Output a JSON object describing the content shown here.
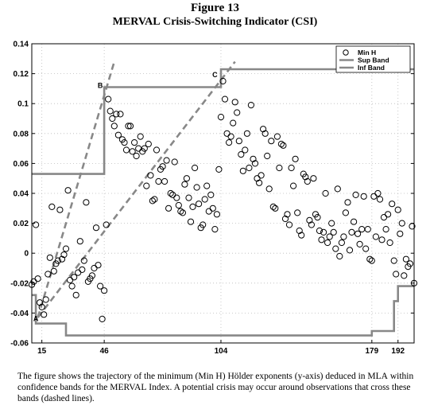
{
  "figure": {
    "title": "Figure 13",
    "subtitle_sc": "MERVAL",
    "subtitle_main": " Crisis-Switching Indicator (",
    "subtitle_abbr": "CSI",
    "subtitle_end": ")",
    "caption_part1": "The figure shows the trajectory of the minimum (Min H) Hölder exponents (y-axis) deduced in ",
    "caption_sc1": "MLA",
    "caption_part2": " within confidence bands for the ",
    "caption_sc2": "MERVAL",
    "caption_part3": " Index. A potential crisis may occur around observations that cross these bands (dashed lines)."
  },
  "chart_data": {
    "type": "scatter",
    "title": "",
    "xlabel": "",
    "ylabel": "",
    "xlim": [
      10,
      200
    ],
    "ylim": [
      -0.06,
      0.14
    ],
    "yticks": [
      -0.06,
      -0.04,
      -0.02,
      0,
      0.02,
      0.04,
      0.06,
      0.08,
      0.1,
      0.12,
      0.14
    ],
    "ytick_labels": [
      "-0.06",
      "-0.04",
      "-0.02",
      "0",
      "0.02",
      "0.04",
      "0.06",
      "0.08",
      "0.1",
      "0.12",
      "0.14"
    ],
    "xticks": [
      15,
      46,
      104,
      179,
      192
    ],
    "xtick_labels": [
      "15",
      "46",
      "104",
      "179",
      "192"
    ],
    "grid": true,
    "legend": {
      "placement": "top-right",
      "entries": [
        {
          "label": "Min H",
          "marker": "circle"
        },
        {
          "label": "Sup Band",
          "marker": "line"
        },
        {
          "label": "Inf Band",
          "marker": "line"
        }
      ]
    },
    "colors": {
      "points": "#000000",
      "bands": "#888888",
      "dashed": "#888888"
    },
    "series": [
      {
        "name": "Min H",
        "points": [
          [
            10,
            -0.021
          ],
          [
            11,
            -0.019
          ],
          [
            12,
            0.019
          ],
          [
            13,
            -0.017
          ],
          [
            14,
            -0.033
          ],
          [
            15,
            -0.036
          ],
          [
            16,
            -0.041
          ],
          [
            17,
            -0.031
          ],
          [
            18,
            -0.014
          ],
          [
            19,
            -0.003
          ],
          [
            20,
            0.031
          ],
          [
            21,
            -0.012
          ],
          [
            22,
            -0.007
          ],
          [
            23,
            -0.005
          ],
          [
            24,
            0.029
          ],
          [
            25,
            -0.004
          ],
          [
            26,
            -0.001
          ],
          [
            27,
            0.003
          ],
          [
            28,
            0.042
          ],
          [
            29,
            -0.018
          ],
          [
            30,
            -0.022
          ],
          [
            31,
            -0.016
          ],
          [
            32,
            -0.028
          ],
          [
            33,
            -0.013
          ],
          [
            34,
            0.008
          ],
          [
            35,
            -0.011
          ],
          [
            36,
            -0.005
          ],
          [
            37,
            0.034
          ],
          [
            38,
            -0.019
          ],
          [
            39,
            -0.017
          ],
          [
            40,
            -0.015
          ],
          [
            41,
            -0.01
          ],
          [
            42,
            0.017
          ],
          [
            43,
            -0.008
          ],
          [
            44,
            -0.022
          ],
          [
            45,
            -0.044
          ],
          [
            46,
            -0.025
          ],
          [
            47,
            0.019
          ],
          [
            48,
            0.103
          ],
          [
            49,
            0.095
          ],
          [
            50,
            0.09
          ],
          [
            51,
            0.085
          ],
          [
            52,
            0.093
          ],
          [
            53,
            0.079
          ],
          [
            54,
            0.093
          ],
          [
            55,
            0.076
          ],
          [
            56,
            0.074
          ],
          [
            57,
            0.069
          ],
          [
            58,
            0.085
          ],
          [
            59,
            0.085
          ],
          [
            60,
            0.068
          ],
          [
            61,
            0.074
          ],
          [
            62,
            0.065
          ],
          [
            63,
            0.07
          ],
          [
            64,
            0.078
          ],
          [
            65,
            0.068
          ],
          [
            66,
            0.07
          ],
          [
            67,
            0.045
          ],
          [
            68,
            0.073
          ],
          [
            69,
            0.052
          ],
          [
            70,
            0.035
          ],
          [
            71,
            0.036
          ],
          [
            72,
            0.069
          ],
          [
            73,
            0.048
          ],
          [
            74,
            0.056
          ],
          [
            75,
            0.058
          ],
          [
            76,
            0.048
          ],
          [
            77,
            0.062
          ],
          [
            78,
            0.03
          ],
          [
            79,
            0.04
          ],
          [
            80,
            0.039
          ],
          [
            81,
            0.061
          ],
          [
            82,
            0.037
          ],
          [
            83,
            0.032
          ],
          [
            84,
            0.028
          ],
          [
            85,
            0.027
          ],
          [
            86,
            0.046
          ],
          [
            87,
            0.05
          ],
          [
            88,
            0.037
          ],
          [
            89,
            0.021
          ],
          [
            90,
            0.031
          ],
          [
            91,
            0.057
          ],
          [
            92,
            0.044
          ],
          [
            93,
            0.033
          ],
          [
            94,
            0.017
          ],
          [
            95,
            0.019
          ],
          [
            96,
            0.036
          ],
          [
            97,
            0.045
          ],
          [
            98,
            0.028
          ],
          [
            99,
            0.039
          ],
          [
            100,
            0.03
          ],
          [
            101,
            0.016
          ],
          [
            102,
            0.026
          ],
          [
            103,
            0.056
          ],
          [
            104,
            0.091
          ],
          [
            105,
            0.115
          ],
          [
            106,
            0.103
          ],
          [
            107,
            0.08
          ],
          [
            108,
            0.074
          ],
          [
            109,
            0.078
          ],
          [
            110,
            0.087
          ],
          [
            111,
            0.101
          ],
          [
            112,
            0.094
          ],
          [
            113,
            0.075
          ],
          [
            114,
            0.066
          ],
          [
            115,
            0.055
          ],
          [
            116,
            0.069
          ],
          [
            117,
            0.08
          ],
          [
            118,
            0.057
          ],
          [
            119,
            0.099
          ],
          [
            120,
            0.063
          ],
          [
            121,
            0.06
          ],
          [
            122,
            0.05
          ],
          [
            123,
            0.047
          ],
          [
            124,
            0.052
          ],
          [
            125,
            0.083
          ],
          [
            126,
            0.08
          ],
          [
            127,
            0.065
          ],
          [
            128,
            0.043
          ],
          [
            129,
            0.075
          ],
          [
            130,
            0.031
          ],
          [
            131,
            0.03
          ],
          [
            132,
            0.078
          ],
          [
            133,
            0.057
          ],
          [
            134,
            0.073
          ],
          [
            135,
            0.072
          ],
          [
            136,
            0.023
          ],
          [
            137,
            0.026
          ],
          [
            138,
            0.019
          ],
          [
            139,
            0.057
          ],
          [
            140,
            0.045
          ],
          [
            141,
            0.063
          ],
          [
            142,
            0.027
          ],
          [
            143,
            0.015
          ],
          [
            144,
            0.012
          ],
          [
            145,
            0.053
          ],
          [
            146,
            0.051
          ],
          [
            147,
            0.048
          ],
          [
            148,
            0.022
          ],
          [
            149,
            0.019
          ],
          [
            150,
            0.05
          ],
          [
            151,
            0.026
          ],
          [
            152,
            0.024
          ],
          [
            153,
            0.015
          ],
          [
            154,
            0.009
          ],
          [
            155,
            0.014
          ],
          [
            156,
            0.04
          ],
          [
            157,
            0.007
          ],
          [
            158,
            0.011
          ],
          [
            159,
            0.02
          ],
          [
            160,
            0.014
          ],
          [
            161,
            0.003
          ],
          [
            162,
            0.043
          ],
          [
            163,
            -0.002
          ],
          [
            164,
            0.007
          ],
          [
            165,
            0.011
          ],
          [
            166,
            0.027
          ],
          [
            167,
            0.034
          ],
          [
            168,
            0.002
          ],
          [
            169,
            0.014
          ],
          [
            170,
            0.021
          ],
          [
            171,
            0.039
          ],
          [
            172,
            0.013
          ],
          [
            173,
            0.006
          ],
          [
            174,
            0.016
          ],
          [
            175,
            0.038
          ],
          [
            176,
            0.003
          ],
          [
            177,
            0.016
          ],
          [
            178,
            -0.004
          ],
          [
            179,
            -0.005
          ],
          [
            180,
            0.038
          ],
          [
            181,
            0.011
          ],
          [
            182,
            0.04
          ],
          [
            183,
            0.036
          ],
          [
            184,
            0.009
          ],
          [
            185,
            0.024
          ],
          [
            186,
            0.016
          ],
          [
            187,
            0.026
          ],
          [
            188,
            0.007
          ],
          [
            189,
            0.033
          ],
          [
            190,
            -0.005
          ],
          [
            191,
            -0.014
          ],
          [
            192,
            0.029
          ],
          [
            193,
            0.013
          ],
          [
            194,
            0.02
          ],
          [
            195,
            -0.015
          ],
          [
            196,
            -0.004
          ],
          [
            197,
            -0.009
          ],
          [
            198,
            -0.007
          ],
          [
            199,
            0.018
          ],
          [
            200,
            -0.02
          ]
        ]
      },
      {
        "name": "Sup Band",
        "steps": [
          [
            10,
            0.053
          ],
          [
            46,
            0.053
          ],
          [
            46,
            0.111
          ],
          [
            104,
            0.111
          ],
          [
            104,
            0.123
          ],
          [
            200,
            0.123
          ]
        ]
      },
      {
        "name": "Inf Band",
        "steps": [
          [
            10,
            -0.028
          ],
          [
            12,
            -0.028
          ],
          [
            12,
            -0.047
          ],
          [
            27,
            -0.047
          ],
          [
            27,
            -0.055
          ],
          [
            179,
            -0.055
          ],
          [
            179,
            -0.052
          ],
          [
            190,
            -0.052
          ],
          [
            190,
            -0.032
          ],
          [
            192,
            -0.032
          ],
          [
            192,
            -0.022
          ],
          [
            200,
            -0.022
          ]
        ]
      }
    ],
    "dashed_lines": [
      {
        "from": [
          13,
          -0.043
        ],
        "to": [
          51,
          0.128
        ]
      },
      {
        "from": [
          13,
          -0.043
        ],
        "to": [
          111,
          0.128
        ]
      }
    ],
    "annotations": [
      {
        "label": "A",
        "x": 12,
        "y": -0.047
      },
      {
        "label": "B",
        "x": 44,
        "y": 0.109
      },
      {
        "label": "C",
        "x": 101,
        "y": 0.116
      }
    ]
  }
}
